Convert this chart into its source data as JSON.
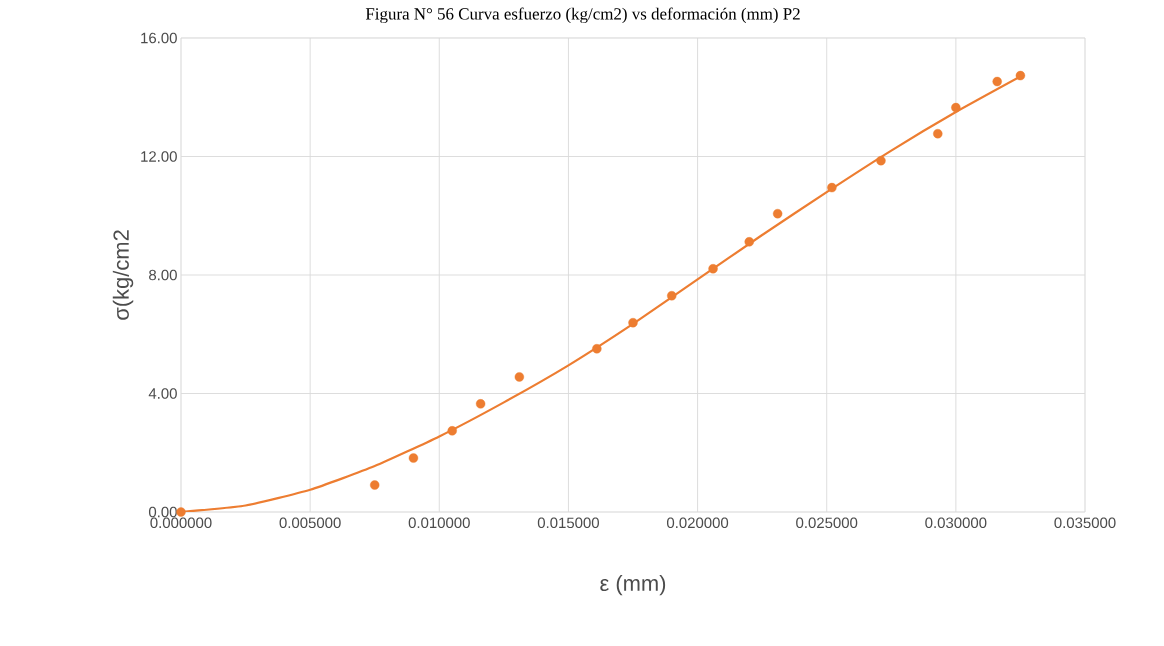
{
  "chart_data": {
    "type": "scatter",
    "title": "Figura N° 56 Curva esfuerzo (kg/cm2) vs deformación (mm) P2",
    "xlabel": "ε (mm)",
    "ylabel": "σ(kg/cm2",
    "xlim": [
      0,
      0.035
    ],
    "ylim": [
      0,
      16
    ],
    "grid": true,
    "xticks": [
      {
        "value": 0,
        "label": "0.000000"
      },
      {
        "value": 0.005,
        "label": "0.005000"
      },
      {
        "value": 0.01,
        "label": "0.010000"
      },
      {
        "value": 0.015,
        "label": "0.015000"
      },
      {
        "value": 0.02,
        "label": "0.020000"
      },
      {
        "value": 0.025,
        "label": "0.025000"
      },
      {
        "value": 0.03,
        "label": "0.030000"
      },
      {
        "value": 0.035,
        "label": "0.035000"
      }
    ],
    "yticks": [
      {
        "value": 0,
        "label": "0.00"
      },
      {
        "value": 4,
        "label": "4.00"
      },
      {
        "value": 8,
        "label": "8.00"
      },
      {
        "value": 12,
        "label": "12.00"
      },
      {
        "value": 16,
        "label": "16.00"
      }
    ],
    "series": [
      {
        "marker": "circle",
        "color": "#ed7d31",
        "x": [
          0,
          0.0075,
          0.009,
          0.0105,
          0.0116,
          0.0131,
          0.0161,
          0.0175,
          0.019,
          0.0206,
          0.022,
          0.0231,
          0.0252,
          0.0271,
          0.0293,
          0.03,
          0.0316,
          0.0325
        ],
        "values": [
          0,
          0.91,
          1.82,
          2.74,
          3.65,
          4.56,
          5.51,
          6.39,
          7.3,
          8.21,
          9.12,
          10.07,
          10.95,
          11.86,
          12.77,
          13.65,
          14.53,
          14.73
        ]
      },
      {
        "type": "line",
        "marker": "none",
        "line_style": "solid",
        "color": "#ed7d31",
        "x": [
          0,
          0.0025,
          0.005,
          0.0075,
          0.01,
          0.0125,
          0.015,
          0.0175,
          0.02,
          0.0225,
          0.025,
          0.0275,
          0.03,
          0.0325
        ],
        "values": [
          0,
          0.22,
          0.75,
          1.55,
          2.55,
          3.7,
          4.95,
          6.35,
          7.85,
          9.35,
          10.8,
          12.2,
          13.5,
          14.7
        ]
      }
    ]
  }
}
